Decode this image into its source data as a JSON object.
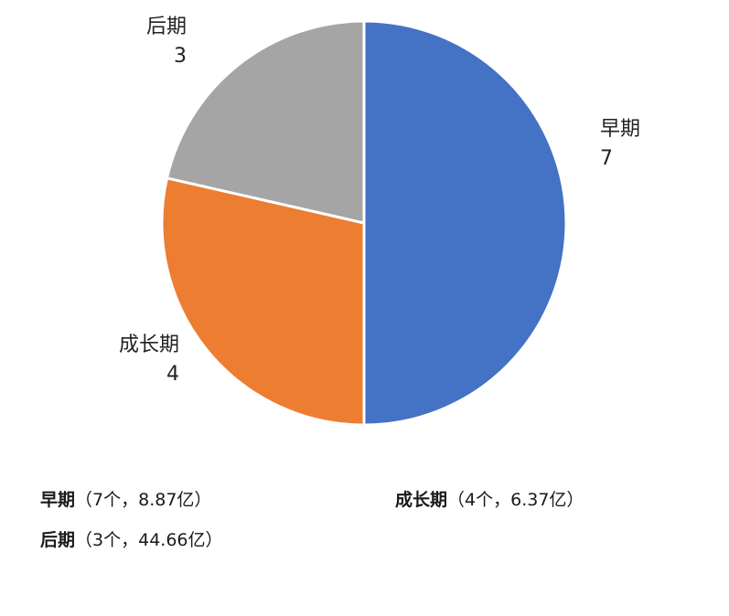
{
  "chart_data": {
    "type": "pie",
    "categories": [
      "早期",
      "成长期",
      "后期"
    ],
    "values": [
      7,
      4,
      3
    ],
    "colors": [
      "#4472C4",
      "#ED7D31",
      "#A5A5A5"
    ],
    "start": "12-o'clock",
    "direction": "clockwise",
    "data_labels": "category and value, outside each slice"
  },
  "legend": {
    "items": [
      {
        "name": "早期",
        "detail": "（7个，8.87亿）"
      },
      {
        "name": "成长期",
        "detail": "（4个，6.37亿）"
      },
      {
        "name": "后期",
        "detail": "（3个，44.66亿）"
      }
    ]
  }
}
